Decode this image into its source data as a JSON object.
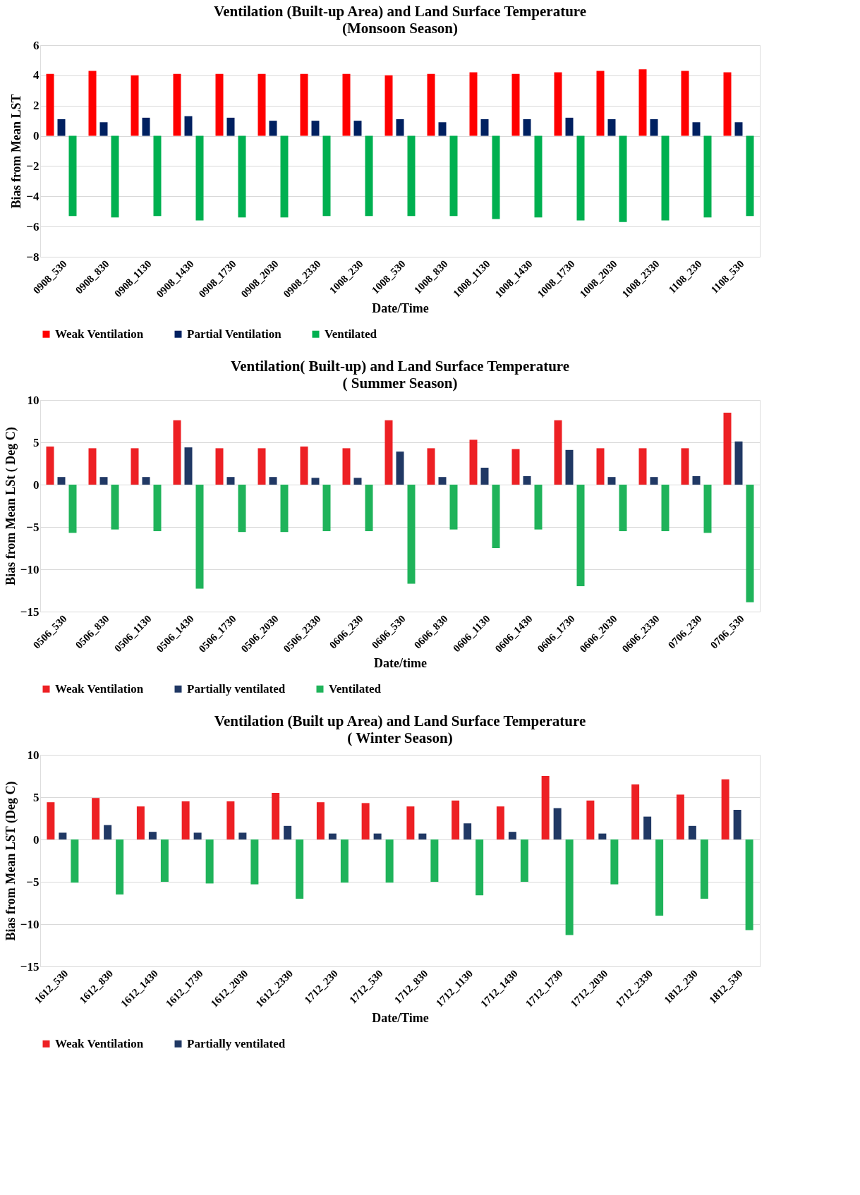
{
  "chart_data": [
    {
      "type": "bar",
      "title": "Ventilation (Built-up Area) and Land Surface Temperature",
      "subtitle": "(Monsoon Season)",
      "xlabel": "Date/Time",
      "ylabel": "Bias from Mean LST",
      "categories": [
        "0908_530",
        "0908_830",
        "0908_1130",
        "0908_1430",
        "0908_1730",
        "0908_2030",
        "0908_2330",
        "1008_230",
        "1008_530",
        "1008_830",
        "1008_1130",
        "1008_1430",
        "1008_1730",
        "1008_2030",
        "1008_2330",
        "1108_230",
        "1108_530"
      ],
      "series": [
        {
          "name": "Weak Ventilation",
          "color": "#ff0000",
          "values": [
            4.1,
            4.3,
            4.0,
            4.1,
            4.1,
            4.1,
            4.1,
            4.1,
            4.0,
            4.1,
            4.2,
            4.1,
            4.2,
            4.3,
            4.4,
            4.3,
            4.2
          ]
        },
        {
          "name": "Partial Ventilation",
          "color": "#002060",
          "values": [
            1.1,
            0.9,
            1.2,
            1.3,
            1.2,
            1.0,
            1.0,
            1.0,
            1.1,
            0.9,
            1.1,
            1.1,
            1.2,
            1.1,
            1.1,
            0.9,
            0.9
          ]
        },
        {
          "name": "Ventilated",
          "color": "#00b050",
          "values": [
            -5.3,
            -5.4,
            -5.3,
            -5.6,
            -5.4,
            -5.4,
            -5.3,
            -5.3,
            -5.3,
            -5.3,
            -5.5,
            -5.4,
            -5.6,
            -5.7,
            -5.6,
            -5.4,
            -5.3
          ]
        }
      ],
      "ylim": [
        -8,
        6
      ],
      "yticks": [
        -8,
        -6,
        -4,
        -2,
        0,
        2,
        4,
        6
      ],
      "grid": "y",
      "legend": "bottom"
    },
    {
      "type": "bar",
      "title": "Ventilation( Built-up) and Land Surface Temperature",
      "subtitle": "( Summer Season)",
      "xlabel": "Date/time",
      "ylabel": "Bias from Mean LSt ( Deg C)",
      "categories": [
        "0506_530",
        "0506_830",
        "0506_1130",
        "0506_1430",
        "0506_1730",
        "0506_2030",
        "0506_2330",
        "0606_230",
        "0606_530",
        "0606_830",
        "0606_1130",
        "0606_1430",
        "0606_1730",
        "0606_2030",
        "0606_2330",
        "0706_230",
        "0706_530"
      ],
      "series": [
        {
          "name": "Weak Ventilation",
          "color": "#ed2024",
          "values": [
            4.5,
            4.3,
            4.3,
            7.6,
            4.3,
            4.3,
            4.5,
            4.3,
            7.6,
            4.3,
            5.3,
            4.2,
            7.6,
            4.3,
            4.3,
            4.3,
            8.5
          ]
        },
        {
          "name": "Partially ventilated",
          "color": "#203864",
          "values": [
            0.9,
            0.9,
            0.9,
            4.4,
            0.9,
            0.9,
            0.8,
            0.8,
            3.9,
            0.9,
            2.0,
            1.0,
            4.1,
            0.9,
            0.9,
            1.0,
            5.1
          ]
        },
        {
          "name": "Ventilated",
          "color": "#1fb35a",
          "values": [
            -5.7,
            -5.3,
            -5.5,
            -12.3,
            -5.6,
            -5.6,
            -5.5,
            -5.5,
            -11.7,
            -5.3,
            -7.5,
            -5.3,
            -12.0,
            -5.5,
            -5.5,
            -5.7,
            -13.9
          ]
        }
      ],
      "ylim": [
        -15,
        10
      ],
      "yticks": [
        -15,
        -10,
        -5,
        0,
        5,
        10
      ],
      "grid": "y",
      "legend": "bottom"
    },
    {
      "type": "bar",
      "title": "Ventilation (Built up Area) and Land Surface Temperature",
      "subtitle": "( Winter Season)",
      "xlabel": "Date/Time",
      "ylabel": "Bias from Mean LST (Deg C)",
      "categories": [
        "1612_530",
        "1612_830",
        "1612_1430",
        "1612_1730",
        "1612_2030",
        "1612_2330",
        "1712_230",
        "1712_530",
        "1712_830",
        "1712_1130",
        "1712_1430",
        "1712_1730",
        "1712_2030",
        "1712_2330",
        "1812_230",
        "1812_530"
      ],
      "series": [
        {
          "name": "Weak Ventilation",
          "color": "#ed2024",
          "values": [
            4.4,
            4.9,
            3.9,
            4.5,
            4.5,
            5.5,
            4.4,
            4.3,
            3.9,
            4.6,
            3.9,
            7.5,
            4.6,
            6.5,
            5.3,
            7.1
          ]
        },
        {
          "name": "Partially ventilated",
          "color": "#203864",
          "values": [
            0.8,
            1.7,
            0.9,
            0.8,
            0.8,
            1.6,
            0.7,
            0.7,
            0.7,
            1.9,
            0.9,
            3.7,
            0.7,
            2.7,
            1.6,
            3.5
          ]
        },
        {
          "color": "#1fb35a",
          "values": [
            -5.1,
            -6.5,
            -5.0,
            -5.2,
            -5.3,
            -7.0,
            -5.1,
            -5.1,
            -5.0,
            -6.6,
            -5.0,
            -11.3,
            -5.3,
            -9.0,
            -7.0,
            -10.7
          ]
        }
      ],
      "ylim": [
        -15,
        10
      ],
      "yticks": [
        -15,
        -10,
        -5,
        0,
        5,
        10
      ],
      "grid": "y",
      "legend": "bottom"
    }
  ]
}
